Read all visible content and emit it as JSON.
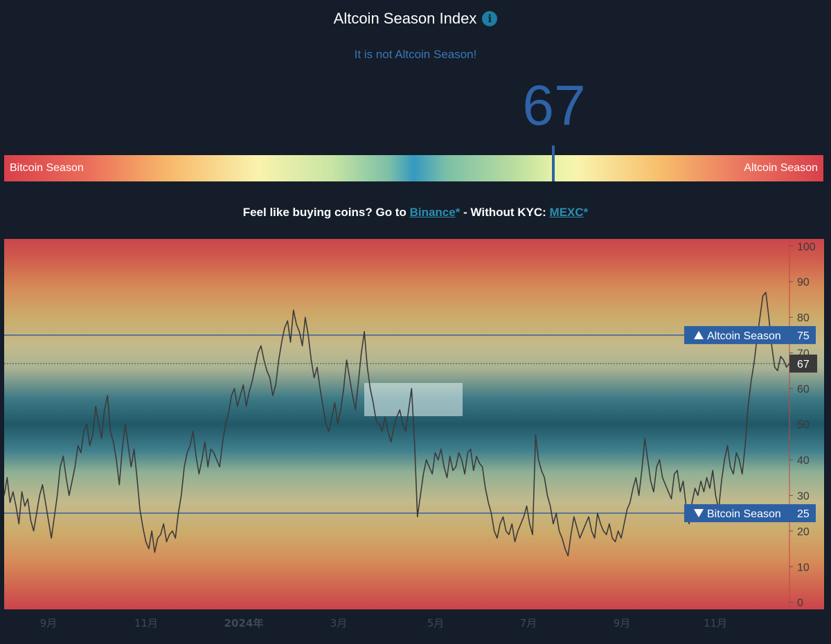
{
  "header": {
    "title": "Altcoin Season Index",
    "info_icon": "info-icon",
    "status": "It is not Altcoin Season!",
    "current_value": "67"
  },
  "gauge": {
    "left_label": "Bitcoin Season",
    "right_label": "Altcoin Season",
    "value": 67,
    "range": [
      0,
      100
    ]
  },
  "promo": {
    "prefix": "Feel like buying coins? Go to",
    "link1": "Binance",
    "star1": "*",
    "middle": " - Without KYC: ",
    "link2": "MEXC",
    "star2": "*"
  },
  "colors": {
    "background": "#141d29",
    "accent_blue": "#2f62a6",
    "line": "#3a3a3a",
    "threshold_line": "#2c5a9a"
  },
  "chart_data": {
    "type": "line",
    "x_tick_labels": [
      "9月",
      "11月",
      "2024年",
      "3月",
      "5月",
      "7月",
      "9月",
      "11月"
    ],
    "y_ticks": [
      0,
      10,
      20,
      30,
      40,
      50,
      60,
      70,
      80,
      90,
      100
    ],
    "ylim": [
      -2,
      102
    ],
    "thresholds": [
      {
        "label": "Altcoin Season",
        "value": 75,
        "marker": "up"
      },
      {
        "label": "Bitcoin Season",
        "value": 25,
        "marker": "down"
      }
    ],
    "current": {
      "value": 67
    },
    "values": [
      30,
      35,
      28,
      31,
      27,
      22,
      31,
      27,
      29,
      23,
      20,
      25,
      30,
      33,
      28,
      23,
      18,
      24,
      30,
      38,
      41,
      35,
      30,
      34,
      38,
      44,
      42,
      48,
      50,
      44,
      47,
      55,
      50,
      46,
      54,
      58,
      48,
      45,
      40,
      33,
      43,
      50,
      44,
      38,
      43,
      35,
      26,
      21,
      17,
      15,
      20,
      14,
      18,
      19,
      22,
      17,
      19,
      20,
      18,
      25,
      30,
      38,
      42,
      44,
      48,
      41,
      36,
      40,
      45,
      38,
      43,
      42,
      40,
      38,
      45,
      50,
      53,
      58,
      60,
      55,
      58,
      61,
      55,
      59,
      62,
      66,
      70,
      72,
      68,
      65,
      63,
      58,
      61,
      68,
      73,
      77,
      79,
      73,
      82,
      78,
      76,
      72,
      80,
      75,
      68,
      63,
      66,
      60,
      55,
      50,
      48,
      52,
      56,
      50,
      54,
      60,
      68,
      63,
      58,
      54,
      62,
      70,
      76,
      66,
      60,
      56,
      51,
      50,
      48,
      52,
      48,
      45,
      49,
      52,
      54,
      50,
      48,
      54,
      60,
      45,
      24,
      30,
      36,
      40,
      38,
      36,
      42,
      40,
      43,
      38,
      35,
      41,
      37,
      38,
      42,
      40,
      36,
      42,
      43,
      37,
      41,
      39,
      38,
      32,
      28,
      25,
      20,
      18,
      22,
      24,
      20,
      19,
      22,
      17,
      20,
      22,
      24,
      27,
      22,
      19,
      47,
      40,
      37,
      35,
      30,
      27,
      22,
      25,
      20,
      18,
      15,
      13,
      19,
      24,
      21,
      18,
      20,
      22,
      24,
      20,
      18,
      25,
      22,
      20,
      19,
      22,
      18,
      17,
      20,
      18,
      22,
      26,
      28,
      32,
      35,
      30,
      37,
      46,
      40,
      34,
      31,
      38,
      40,
      35,
      33,
      31,
      29,
      36,
      37,
      31,
      34,
      27,
      22,
      28,
      32,
      30,
      34,
      31,
      35,
      32,
      37,
      30,
      26,
      34,
      40,
      44,
      38,
      36,
      42,
      40,
      36,
      44,
      55,
      62,
      67,
      74,
      80,
      86,
      87,
      80,
      72,
      66,
      65,
      69,
      68,
      66,
      67
    ]
  }
}
